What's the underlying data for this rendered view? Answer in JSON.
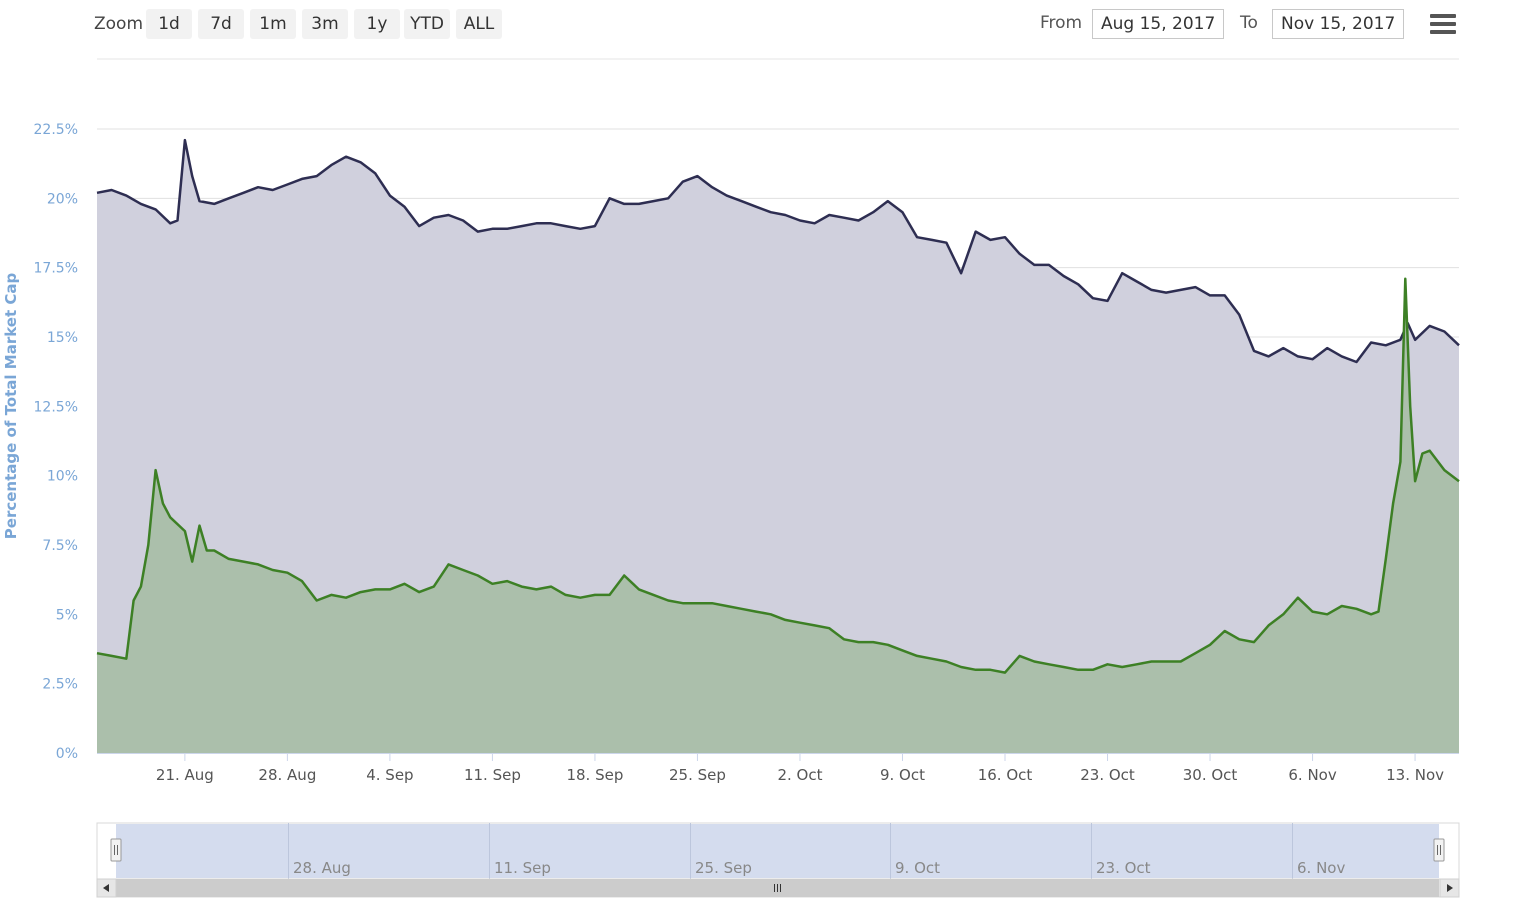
{
  "toolbar": {
    "zoom_label": "Zoom",
    "zoom_buttons": [
      "1d",
      "7d",
      "1m",
      "3m",
      "1y",
      "YTD",
      "ALL"
    ],
    "from_label": "From",
    "from_value": "Aug 15, 2017",
    "to_label": "To",
    "to_value": "Nov 15, 2017",
    "menu_icon": "hamburger-menu-icon"
  },
  "colors": {
    "upper_line": "#2e2e52",
    "upper_fill": "#d0d0dd",
    "lower_line": "#3d8025",
    "lower_fill": "#abbfab",
    "axis_text": "#7aa6d6",
    "navigator_mask": "#ccd6eb"
  },
  "chart_data": {
    "type": "area",
    "ylabel": "Percentage of Total Market Cap",
    "ylim": [
      0,
      22.5
    ],
    "y_ticks": [
      "0%",
      "2.5%",
      "5%",
      "7.5%",
      "10%",
      "12.5%",
      "15%",
      "17.5%",
      "20%",
      "22.5%"
    ],
    "x_range": [
      "2017-08-15",
      "2017-11-16"
    ],
    "x_ticks": [
      "21. Aug",
      "28. Aug",
      "4. Sep",
      "11. Sep",
      "18. Sep",
      "25. Sep",
      "2. Oct",
      "9. Oct",
      "16. Oct",
      "23. Oct",
      "30. Oct",
      "6. Nov",
      "13. Nov"
    ],
    "grid": true,
    "legend": "none",
    "series": [
      {
        "values": [
          [
            "2017-08-15",
            20.2
          ],
          [
            "2017-08-16",
            20.3
          ],
          [
            "2017-08-17",
            20.1
          ],
          [
            "2017-08-18",
            19.8
          ],
          [
            "2017-08-19",
            19.6
          ],
          [
            "2017-08-20",
            19.1
          ],
          [
            "2017-08-20T12",
            19.2
          ],
          [
            "2017-08-21",
            22.1
          ],
          [
            "2017-08-21T12",
            20.8
          ],
          [
            "2017-08-22",
            19.9
          ],
          [
            "2017-08-23",
            19.8
          ],
          [
            "2017-08-24",
            20.0
          ],
          [
            "2017-08-25",
            20.2
          ],
          [
            "2017-08-26",
            20.4
          ],
          [
            "2017-08-27",
            20.3
          ],
          [
            "2017-08-28",
            20.5
          ],
          [
            "2017-08-29",
            20.7
          ],
          [
            "2017-08-30",
            20.8
          ],
          [
            "2017-08-31",
            21.2
          ],
          [
            "2017-09-01",
            21.5
          ],
          [
            "2017-09-02",
            21.3
          ],
          [
            "2017-09-03",
            20.9
          ],
          [
            "2017-09-04",
            20.1
          ],
          [
            "2017-09-05",
            19.7
          ],
          [
            "2017-09-06",
            19.0
          ],
          [
            "2017-09-07",
            19.3
          ],
          [
            "2017-09-08",
            19.4
          ],
          [
            "2017-09-09",
            19.2
          ],
          [
            "2017-09-10",
            18.8
          ],
          [
            "2017-09-11",
            18.9
          ],
          [
            "2017-09-12",
            18.9
          ],
          [
            "2017-09-13",
            19.0
          ],
          [
            "2017-09-14",
            19.1
          ],
          [
            "2017-09-15",
            19.1
          ],
          [
            "2017-09-16",
            19.0
          ],
          [
            "2017-09-17",
            18.9
          ],
          [
            "2017-09-18",
            19.0
          ],
          [
            "2017-09-19",
            20.0
          ],
          [
            "2017-09-20",
            19.8
          ],
          [
            "2017-09-21",
            19.8
          ],
          [
            "2017-09-22",
            19.9
          ],
          [
            "2017-09-23",
            20.0
          ],
          [
            "2017-09-24",
            20.6
          ],
          [
            "2017-09-25",
            20.8
          ],
          [
            "2017-09-26",
            20.4
          ],
          [
            "2017-09-27",
            20.1
          ],
          [
            "2017-09-28",
            19.9
          ],
          [
            "2017-09-29",
            19.7
          ],
          [
            "2017-09-30",
            19.5
          ],
          [
            "2017-10-01",
            19.4
          ],
          [
            "2017-10-02",
            19.2
          ],
          [
            "2017-10-03",
            19.1
          ],
          [
            "2017-10-04",
            19.4
          ],
          [
            "2017-10-05",
            19.3
          ],
          [
            "2017-10-06",
            19.2
          ],
          [
            "2017-10-07",
            19.5
          ],
          [
            "2017-10-08",
            19.9
          ],
          [
            "2017-10-09",
            19.5
          ],
          [
            "2017-10-10",
            18.6
          ],
          [
            "2017-10-11",
            18.5
          ],
          [
            "2017-10-12",
            18.4
          ],
          [
            "2017-10-13",
            17.3
          ],
          [
            "2017-10-14",
            18.8
          ],
          [
            "2017-10-15",
            18.5
          ],
          [
            "2017-10-16",
            18.6
          ],
          [
            "2017-10-17",
            18.0
          ],
          [
            "2017-10-18",
            17.6
          ],
          [
            "2017-10-19",
            17.6
          ],
          [
            "2017-10-20",
            17.2
          ],
          [
            "2017-10-21",
            16.9
          ],
          [
            "2017-10-22",
            16.4
          ],
          [
            "2017-10-23",
            16.3
          ],
          [
            "2017-10-24",
            17.3
          ],
          [
            "2017-10-25",
            17.0
          ],
          [
            "2017-10-26",
            16.7
          ],
          [
            "2017-10-27",
            16.6
          ],
          [
            "2017-10-28",
            16.7
          ],
          [
            "2017-10-29",
            16.8
          ],
          [
            "2017-10-30",
            16.5
          ],
          [
            "2017-10-31",
            16.5
          ],
          [
            "2017-11-01",
            15.8
          ],
          [
            "2017-11-02",
            14.5
          ],
          [
            "2017-11-03",
            14.3
          ],
          [
            "2017-11-04",
            14.6
          ],
          [
            "2017-11-05",
            14.3
          ],
          [
            "2017-11-06",
            14.2
          ],
          [
            "2017-11-07",
            14.6
          ],
          [
            "2017-11-08",
            14.3
          ],
          [
            "2017-11-09",
            14.1
          ],
          [
            "2017-11-10",
            14.8
          ],
          [
            "2017-11-11",
            14.7
          ],
          [
            "2017-11-12",
            14.9
          ],
          [
            "2017-11-12T12",
            15.5
          ],
          [
            "2017-11-13",
            14.9
          ],
          [
            "2017-11-14",
            15.4
          ],
          [
            "2017-11-15",
            15.2
          ],
          [
            "2017-11-16",
            14.7
          ]
        ]
      },
      {
        "values": [
          [
            "2017-08-15",
            3.6
          ],
          [
            "2017-08-16",
            3.5
          ],
          [
            "2017-08-17",
            3.4
          ],
          [
            "2017-08-17T12",
            5.5
          ],
          [
            "2017-08-18",
            6.0
          ],
          [
            "2017-08-18T12",
            7.5
          ],
          [
            "2017-08-19",
            10.2
          ],
          [
            "2017-08-19T12",
            9.0
          ],
          [
            "2017-08-20",
            8.5
          ],
          [
            "2017-08-21",
            8.0
          ],
          [
            "2017-08-21T12",
            6.9
          ],
          [
            "2017-08-22",
            8.2
          ],
          [
            "2017-08-22T12",
            7.3
          ],
          [
            "2017-08-23",
            7.3
          ],
          [
            "2017-08-24",
            7.0
          ],
          [
            "2017-08-25",
            6.9
          ],
          [
            "2017-08-26",
            6.8
          ],
          [
            "2017-08-27",
            6.6
          ],
          [
            "2017-08-28",
            6.5
          ],
          [
            "2017-08-29",
            6.2
          ],
          [
            "2017-08-30",
            5.5
          ],
          [
            "2017-08-31",
            5.7
          ],
          [
            "2017-09-01",
            5.6
          ],
          [
            "2017-09-02",
            5.8
          ],
          [
            "2017-09-03",
            5.9
          ],
          [
            "2017-09-04",
            5.9
          ],
          [
            "2017-09-05",
            6.1
          ],
          [
            "2017-09-06",
            5.8
          ],
          [
            "2017-09-07",
            6.0
          ],
          [
            "2017-09-08",
            6.8
          ],
          [
            "2017-09-09",
            6.6
          ],
          [
            "2017-09-10",
            6.4
          ],
          [
            "2017-09-11",
            6.1
          ],
          [
            "2017-09-12",
            6.2
          ],
          [
            "2017-09-13",
            6.0
          ],
          [
            "2017-09-14",
            5.9
          ],
          [
            "2017-09-15",
            6.0
          ],
          [
            "2017-09-16",
            5.7
          ],
          [
            "2017-09-17",
            5.6
          ],
          [
            "2017-09-18",
            5.7
          ],
          [
            "2017-09-19",
            5.7
          ],
          [
            "2017-09-20",
            6.4
          ],
          [
            "2017-09-21",
            5.9
          ],
          [
            "2017-09-22",
            5.7
          ],
          [
            "2017-09-23",
            5.5
          ],
          [
            "2017-09-24",
            5.4
          ],
          [
            "2017-09-25",
            5.4
          ],
          [
            "2017-09-26",
            5.4
          ],
          [
            "2017-09-27",
            5.3
          ],
          [
            "2017-09-28",
            5.2
          ],
          [
            "2017-09-29",
            5.1
          ],
          [
            "2017-09-30",
            5.0
          ],
          [
            "2017-10-01",
            4.8
          ],
          [
            "2017-10-02",
            4.7
          ],
          [
            "2017-10-03",
            4.6
          ],
          [
            "2017-10-04",
            4.5
          ],
          [
            "2017-10-05",
            4.1
          ],
          [
            "2017-10-06",
            4.0
          ],
          [
            "2017-10-07",
            4.0
          ],
          [
            "2017-10-08",
            3.9
          ],
          [
            "2017-10-09",
            3.7
          ],
          [
            "2017-10-10",
            3.5
          ],
          [
            "2017-10-11",
            3.4
          ],
          [
            "2017-10-12",
            3.3
          ],
          [
            "2017-10-13",
            3.1
          ],
          [
            "2017-10-14",
            3.0
          ],
          [
            "2017-10-15",
            3.0
          ],
          [
            "2017-10-16",
            2.9
          ],
          [
            "2017-10-17",
            3.5
          ],
          [
            "2017-10-18",
            3.3
          ],
          [
            "2017-10-19",
            3.2
          ],
          [
            "2017-10-20",
            3.1
          ],
          [
            "2017-10-21",
            3.0
          ],
          [
            "2017-10-22",
            3.0
          ],
          [
            "2017-10-23",
            3.2
          ],
          [
            "2017-10-24",
            3.1
          ],
          [
            "2017-10-25",
            3.2
          ],
          [
            "2017-10-26",
            3.3
          ],
          [
            "2017-10-27",
            3.3
          ],
          [
            "2017-10-28",
            3.3
          ],
          [
            "2017-10-29",
            3.6
          ],
          [
            "2017-10-30",
            3.9
          ],
          [
            "2017-10-31",
            4.4
          ],
          [
            "2017-11-01",
            4.1
          ],
          [
            "2017-11-02",
            4.0
          ],
          [
            "2017-11-03",
            4.6
          ],
          [
            "2017-11-04",
            5.0
          ],
          [
            "2017-11-05",
            5.6
          ],
          [
            "2017-11-06",
            5.1
          ],
          [
            "2017-11-07",
            5.0
          ],
          [
            "2017-11-08",
            5.3
          ],
          [
            "2017-11-09",
            5.2
          ],
          [
            "2017-11-10",
            5.0
          ],
          [
            "2017-11-10T12",
            5.1
          ],
          [
            "2017-11-11",
            7.0
          ],
          [
            "2017-11-11T12",
            9.0
          ],
          [
            "2017-11-12",
            10.5
          ],
          [
            "2017-11-12T08",
            17.1
          ],
          [
            "2017-11-12T16",
            12.5
          ],
          [
            "2017-11-13",
            9.8
          ],
          [
            "2017-11-13T12",
            10.8
          ],
          [
            "2017-11-14",
            10.9
          ],
          [
            "2017-11-15",
            10.2
          ],
          [
            "2017-11-16",
            9.8
          ]
        ]
      }
    ]
  },
  "navigator": {
    "labels": [
      "28. Aug",
      "11. Sep",
      "25. Sep",
      "9. Oct",
      "23. Oct",
      "6. Nov"
    ],
    "left_handle_icon": "grip-handle-icon",
    "right_handle_icon": "grip-handle-icon",
    "scroll_left_icon": "arrow-left-icon",
    "scroll_right_icon": "arrow-right-icon",
    "scroll_grip_icon": "grip-icon"
  }
}
